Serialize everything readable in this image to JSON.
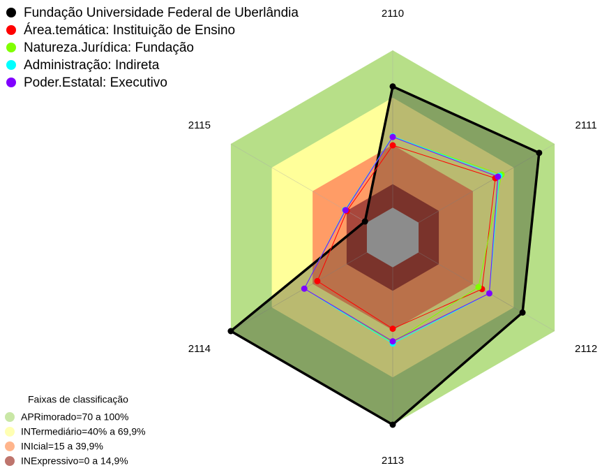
{
  "chart_data": {
    "type": "radar",
    "categories": [
      "2110",
      "2111",
      "2112",
      "2113",
      "2114",
      "2115"
    ],
    "rlim": [
      -19,
      100
    ],
    "bands_title": "Faixas de classificação",
    "bands": [
      {
        "label": "APRimorado=70 a 100%",
        "from": 70,
        "to": 100,
        "color": "#b7df88"
      },
      {
        "label": "INTermediário=40% a 69,9%",
        "from": 40,
        "to": 69.9,
        "color": "#ffff9a"
      },
      {
        "label": "INIcial=15 a 39,9%",
        "from": 15,
        "to": 39.9,
        "color": "#ff9c66"
      },
      {
        "label": "INExpressivo=0 a 14,9%",
        "from": 0,
        "to": 14.9,
        "color": "#a8473c"
      }
    ],
    "center_color": "#c0c0c0",
    "series": [
      {
        "name": "Fundação Universidade Federal de Uberlândia",
        "color": "#000000",
        "values": [
          77,
          88.6,
          76.4,
          100,
          100,
          1.4
        ]
      },
      {
        "name": "Área.temática: Instituição de Ensino",
        "color": "#ff0000",
        "values": [
          39.6,
          56.4,
          46.6,
          39,
          36.4,
          14.7
        ]
      },
      {
        "name": "Natureza.Jurídica: Fundação",
        "color": "#80ff00",
        "values": [
          45,
          61,
          44,
          47.6,
          46,
          16
        ]
      },
      {
        "name": "Administração: Indireta",
        "color": "#00ffff",
        "values": [
          45.3,
          59.4,
          52,
          48.4,
          46,
          16
        ]
      },
      {
        "name": "Poder.Estatal: Executivo",
        "color": "#8000ff",
        "values": [
          44.9,
          58.3,
          52,
          47,
          46,
          15.7
        ]
      }
    ]
  }
}
